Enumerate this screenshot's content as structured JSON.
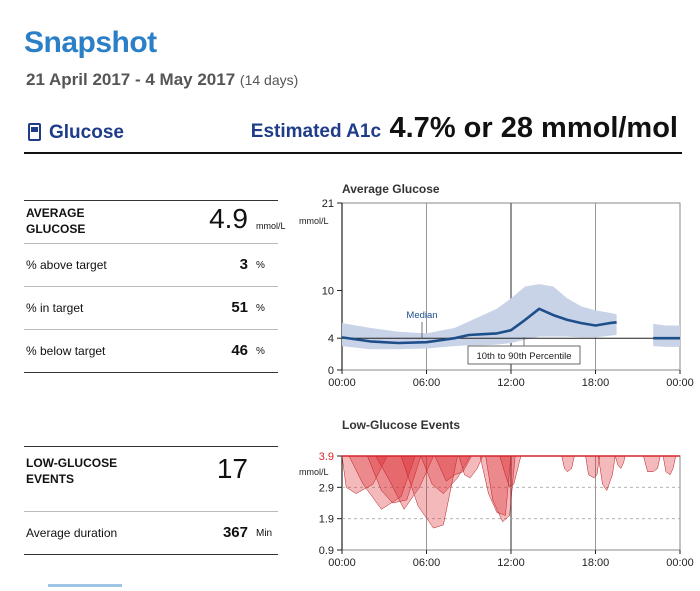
{
  "header": {
    "title": "Snapshot",
    "date_range": "21 April 2017 - 4 May 2017",
    "days": "(14 days)"
  },
  "section": {
    "label": "Glucose",
    "icon": "glucose-sensor-icon",
    "a1c_label": "Estimated A1c",
    "a1c_value": "4.7% or 28 mmol/mol"
  },
  "stats": {
    "average_label": "AVERAGE GLUCOSE",
    "average_value": "4.9",
    "average_unit": "mmol/L",
    "rows": [
      {
        "label": "% above target",
        "value": "3",
        "unit": "%"
      },
      {
        "label": "% in target",
        "value": "51",
        "unit": "%"
      },
      {
        "label": "% below target",
        "value": "46",
        "unit": "%"
      }
    ]
  },
  "events": {
    "label": "LOW-GLUCOSE EVENTS",
    "value": "17",
    "duration_label": "Average duration",
    "duration_value": "367",
    "duration_unit": "Min"
  },
  "colors": {
    "accent": "#2b7fc7",
    "navy": "#1f3c88",
    "median": "#1f4f8a",
    "band": "#c9d3e8",
    "low": "#d9252b"
  },
  "chart_data": [
    {
      "type": "area",
      "title": "Average Glucose",
      "ylabel": "mmol/L",
      "ylim": [
        0,
        21
      ],
      "yticks": [
        0,
        4,
        10,
        21
      ],
      "target_line": 4,
      "xlim": [
        0,
        24
      ],
      "xticks": [
        "00:00",
        "06:00",
        "12:00",
        "18:00",
        "00:00"
      ],
      "median_label": "Median",
      "band_label": "10th to 90th Percentile",
      "segments": [
        {
          "x": [
            0,
            2,
            4,
            6,
            8,
            9,
            10,
            11,
            12,
            13,
            14,
            15,
            16,
            17,
            18,
            19,
            19.5
          ],
          "median": [
            4.1,
            3.6,
            3.4,
            3.5,
            4.0,
            4.4,
            4.5,
            4.6,
            5.0,
            6.3,
            7.7,
            6.9,
            6.3,
            5.9,
            5.6,
            5.9,
            6.0
          ],
          "p10": [
            3.0,
            2.6,
            2.6,
            2.7,
            3.0,
            3.1,
            3.1,
            3.2,
            3.4,
            3.8,
            4.2,
            4.2,
            4.2,
            4.1,
            4.1,
            4.3,
            4.4
          ],
          "p90": [
            5.9,
            5.3,
            4.8,
            4.6,
            5.3,
            6.1,
            6.9,
            7.7,
            9.0,
            10.5,
            10.8,
            10.5,
            9.0,
            8.0,
            7.5,
            7.2,
            7.0
          ]
        },
        {
          "x": [
            22.1,
            23,
            24
          ],
          "median": [
            4.0,
            4.0,
            4.0
          ],
          "p10": [
            3.0,
            2.9,
            2.9
          ],
          "p90": [
            5.8,
            5.6,
            5.6
          ]
        }
      ]
    },
    {
      "type": "area",
      "title": "Low-Glucose Events",
      "ylabel": "mmol/L",
      "ylim": [
        0.9,
        3.9
      ],
      "yticks": [
        0.9,
        1.9,
        2.9,
        3.9
      ],
      "threshold": 3.9,
      "xlim": [
        0,
        24
      ],
      "xticks": [
        "00:00",
        "06:00",
        "12:00",
        "18:00",
        "00:00"
      ],
      "events": [
        {
          "x": [
            0,
            0.3,
            1.0,
            2.2,
            3.2
          ],
          "y": [
            3.9,
            2.9,
            2.7,
            3.0,
            3.9
          ]
        },
        {
          "x": [
            0.5,
            1.5,
            2.8,
            4.2,
            5.2
          ],
          "y": [
            3.9,
            3.0,
            2.2,
            2.6,
            3.9
          ]
        },
        {
          "x": [
            1.8,
            2.8,
            3.6,
            4.6,
            5.6
          ],
          "y": [
            3.9,
            2.8,
            2.4,
            2.5,
            3.9
          ]
        },
        {
          "x": [
            2.4,
            3.4,
            4.4,
            5.5,
            6.5
          ],
          "y": [
            3.9,
            3.1,
            2.2,
            2.9,
            3.9
          ]
        },
        {
          "x": [
            4.2,
            5.4,
            6.5,
            7.2,
            8.2
          ],
          "y": [
            3.9,
            2.3,
            1.6,
            1.7,
            3.9
          ]
        },
        {
          "x": [
            5.6,
            6.4,
            7.2,
            8.2,
            9.1
          ],
          "y": [
            3.9,
            3.0,
            2.7,
            3.2,
            3.9
          ]
        },
        {
          "x": [
            6.6,
            7.4,
            8.0,
            8.6,
            9.2
          ],
          "y": [
            3.9,
            3.1,
            3.3,
            3.4,
            3.9
          ]
        },
        {
          "x": [
            8.3,
            8.7,
            9.1,
            9.6,
            10.0
          ],
          "y": [
            3.9,
            3.3,
            3.2,
            3.5,
            3.9
          ]
        },
        {
          "x": [
            9.8,
            10.4,
            11.0,
            11.6,
            12.0
          ],
          "y": [
            3.9,
            2.7,
            2.1,
            2.0,
            3.9
          ]
        },
        {
          "x": [
            10.2,
            10.7,
            11.4,
            11.9,
            12.3
          ],
          "y": [
            3.9,
            2.5,
            1.8,
            2.0,
            3.9
          ]
        },
        {
          "x": [
            11.2,
            11.6,
            11.9,
            12.2,
            12.7
          ],
          "y": [
            3.9,
            3.3,
            2.9,
            3.0,
            3.9
          ]
        },
        {
          "x": [
            15.6,
            15.8,
            16.0,
            16.3,
            16.5
          ],
          "y": [
            3.9,
            3.5,
            3.4,
            3.5,
            3.9
          ]
        },
        {
          "x": [
            17.3,
            17.5,
            17.9,
            18.1,
            18.3
          ],
          "y": [
            3.9,
            3.3,
            3.2,
            3.3,
            3.9
          ]
        },
        {
          "x": [
            18.2,
            18.5,
            18.8,
            19.2,
            19.4
          ],
          "y": [
            3.9,
            3.0,
            2.8,
            3.3,
            3.9
          ]
        },
        {
          "x": [
            19.4,
            19.6,
            19.8,
            20.0,
            20.1
          ],
          "y": [
            3.9,
            3.6,
            3.5,
            3.7,
            3.9
          ]
        },
        {
          "x": [
            21.4,
            21.7,
            22.1,
            22.4,
            22.6
          ],
          "y": [
            3.9,
            3.4,
            3.4,
            3.5,
            3.9
          ]
        },
        {
          "x": [
            22.8,
            23.0,
            23.3,
            23.5,
            23.7
          ],
          "y": [
            3.9,
            3.4,
            3.3,
            3.5,
            3.9
          ]
        }
      ]
    }
  ]
}
